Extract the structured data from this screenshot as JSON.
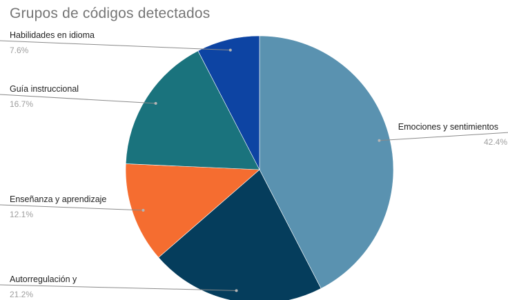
{
  "chart_data": {
    "type": "pie",
    "title": "Grupos de códigos detectados",
    "slices": [
      {
        "label": "Emociones y sentimientos",
        "pct_label": "42.4%",
        "value": 42.4,
        "color": "#5a92b0"
      },
      {
        "label": "Autorregulación y",
        "pct_label": "21.2%",
        "value": 21.2,
        "color": "#053d5c"
      },
      {
        "label": "Enseñanza y aprendizaje",
        "pct_label": "12.1%",
        "value": 12.1,
        "color": "#f56d30"
      },
      {
        "label": "Guía instruccional",
        "pct_label": "16.7%",
        "value": 16.7,
        "color": "#1a737d"
      },
      {
        "label": "Habilidades en idioma",
        "pct_label": "7.6%",
        "value": 7.6,
        "color": "#0d44a3"
      }
    ]
  }
}
